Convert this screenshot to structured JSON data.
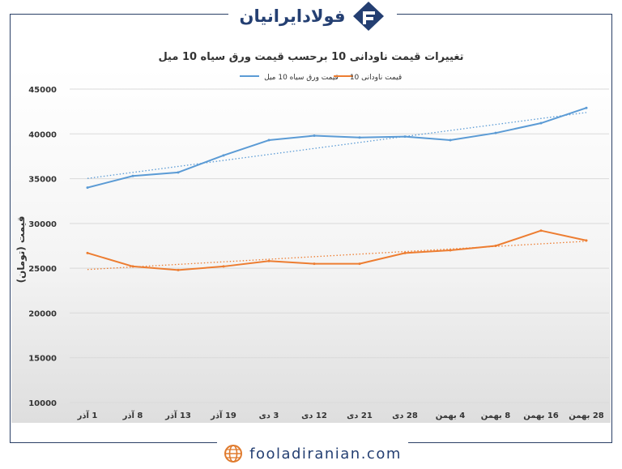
{
  "brand": {
    "name": "فولادایرانیان",
    "site": "fooladiranian.com"
  },
  "colors": {
    "series1": "#5b9bd5",
    "series2": "#ed7d31",
    "brand": "#243f72"
  },
  "chart_data": {
    "type": "line",
    "title": "تغییرات قیمت ناودانی 10 برحسب قیمت ورق سیاه 10 میل",
    "ylabel": "قیمت (تومان)",
    "xlabel": "",
    "ylim": [
      10000,
      45000
    ],
    "yticks": [
      "45000",
      "40000",
      "35000",
      "30000",
      "25000",
      "20000",
      "15000",
      "10000"
    ],
    "categories": [
      "1 آذر",
      "8 آذر",
      "13 آذر",
      "19 آذر",
      "3 دی",
      "12 دی",
      "21 دی",
      "28 دی",
      "4 بهمن",
      "8 بهمن",
      "16 بهمن",
      "28 بهمن"
    ],
    "legend_position": "top",
    "grid": true,
    "trendlines": true,
    "series": [
      {
        "name": "قیمت ورق سیاه 10 میل",
        "values": [
          34000,
          35300,
          35700,
          37600,
          39300,
          39800,
          39600,
          39700,
          39300,
          40100,
          41200,
          42900
        ]
      },
      {
        "name": "قیمت ناودانی 10",
        "values": [
          26700,
          25200,
          24800,
          25200,
          25800,
          25500,
          25500,
          26700,
          27000,
          27500,
          29200,
          28100
        ]
      }
    ]
  }
}
